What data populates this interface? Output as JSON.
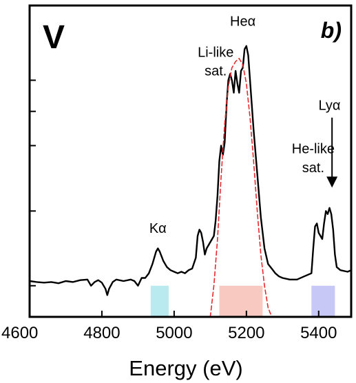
{
  "chart_data": {
    "type": "line",
    "title": "",
    "xlabel": "Energy (eV)",
    "ylabel": "",
    "xlim": [
      4600,
      5490
    ],
    "ylim": [
      0,
      1
    ],
    "xticks": [
      4600,
      4800,
      5000,
      5200,
      5400
    ],
    "yticks_minor": [
      0.1,
      0.34,
      0.55,
      0.66,
      0.76
    ],
    "grid": false,
    "element_label": "V",
    "panel_label": "b)",
    "series": [
      {
        "name": "spectrum",
        "color": "#000000",
        "style": "solid",
        "x": [
          4600,
          4620,
          4640,
          4660,
          4680,
          4700,
          4720,
          4740,
          4760,
          4770,
          4780,
          4790,
          4800,
          4810,
          4815,
          4820,
          4830,
          4840,
          4860,
          4880,
          4890,
          4900,
          4910,
          4920,
          4930,
          4940,
          4950,
          4955,
          4960,
          4970,
          4980,
          4990,
          5000,
          5010,
          5020,
          5030,
          5040,
          5050,
          5060,
          5065,
          5070,
          5075,
          5080,
          5085,
          5090,
          5100,
          5110,
          5115,
          5120,
          5125,
          5130,
          5135,
          5140,
          5145,
          5150,
          5155,
          5160,
          5165,
          5170,
          5175,
          5180,
          5185,
          5190,
          5195,
          5200,
          5205,
          5210,
          5215,
          5220,
          5230,
          5240,
          5250,
          5260,
          5270,
          5280,
          5290,
          5300,
          5320,
          5340,
          5360,
          5380,
          5385,
          5390,
          5395,
          5400,
          5405,
          5410,
          5415,
          5420,
          5425,
          5430,
          5435,
          5440,
          5445,
          5450,
          5460,
          5480,
          5490
        ],
        "y": [
          0.115,
          0.112,
          0.11,
          0.112,
          0.108,
          0.115,
          0.112,
          0.118,
          0.12,
          0.1,
          0.112,
          0.118,
          0.11,
          0.09,
          0.07,
          0.09,
          0.112,
          0.12,
          0.115,
          0.12,
          0.115,
          0.1,
          0.125,
          0.125,
          0.14,
          0.17,
          0.21,
          0.22,
          0.21,
          0.18,
          0.16,
          0.15,
          0.145,
          0.14,
          0.145,
          0.14,
          0.15,
          0.155,
          0.19,
          0.26,
          0.28,
          0.27,
          0.24,
          0.2,
          0.22,
          0.24,
          0.26,
          0.31,
          0.39,
          0.5,
          0.55,
          0.52,
          0.56,
          0.68,
          0.76,
          0.78,
          0.76,
          0.72,
          0.79,
          0.75,
          0.72,
          0.79,
          0.8,
          0.86,
          0.87,
          0.84,
          0.76,
          0.68,
          0.6,
          0.46,
          0.32,
          0.22,
          0.17,
          0.155,
          0.14,
          0.13,
          0.125,
          0.12,
          0.12,
          0.13,
          0.14,
          0.22,
          0.29,
          0.3,
          0.27,
          0.26,
          0.25,
          0.3,
          0.34,
          0.33,
          0.35,
          0.33,
          0.28,
          0.2,
          0.16,
          0.15,
          0.145,
          0.15
        ]
      },
      {
        "name": "fit",
        "color": "#e8282b",
        "style": "dashed",
        "x": [
          5100,
          5110,
          5120,
          5130,
          5140,
          5150,
          5160,
          5170,
          5180,
          5190,
          5200,
          5210,
          5220,
          5230,
          5240,
          5250,
          5260,
          5270
        ],
        "y": [
          0.0,
          0.1,
          0.25,
          0.45,
          0.62,
          0.74,
          0.8,
          0.82,
          0.83,
          0.81,
          0.75,
          0.64,
          0.5,
          0.34,
          0.2,
          0.1,
          0.03,
          0.0
        ]
      }
    ],
    "bands": [
      {
        "x0": 4935,
        "x1": 4985,
        "y0": 0.0,
        "y1": 0.1,
        "color": "#b8eaf0"
      },
      {
        "x0": 5125,
        "x1": 5245,
        "y0": 0.0,
        "y1": 0.1,
        "color": "#f7c9c0"
      },
      {
        "x0": 5380,
        "x1": 5445,
        "y0": 0.0,
        "y1": 0.1,
        "color": "#c8c8f7"
      }
    ],
    "annotations": [
      {
        "id": "k-alpha",
        "text": "Kα",
        "x": 4955,
        "y": 0.27
      },
      {
        "id": "he-alpha",
        "text": "Heα",
        "x": 5190,
        "y": 0.935
      },
      {
        "id": "li-like-1",
        "text": "Li-like",
        "x": 5115,
        "y": 0.835
      },
      {
        "id": "li-like-2",
        "text": "sat.",
        "x": 5115,
        "y": 0.775
      },
      {
        "id": "ly-alpha",
        "text": "Lyα",
        "x": 5430,
        "y": 0.665
      },
      {
        "id": "he-like-1",
        "text": "He-like",
        "x": 5385,
        "y": 0.525
      },
      {
        "id": "he-like-2",
        "text": "sat.",
        "x": 5385,
        "y": 0.465
      }
    ],
    "arrow": {
      "x": 5437,
      "y_start": 0.64,
      "y_end": 0.415
    }
  }
}
